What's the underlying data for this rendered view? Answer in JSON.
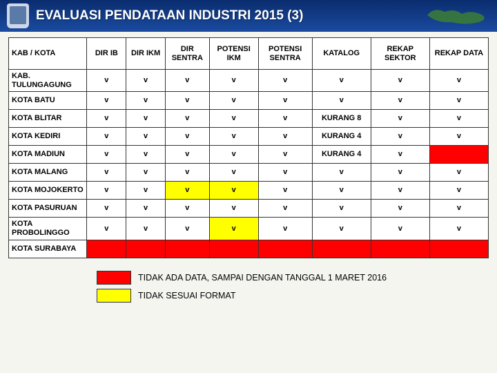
{
  "header": {
    "title": "EVALUASI PENDATAAN INDUSTRI 2015 (3)"
  },
  "table": {
    "columns": [
      "KAB / KOTA",
      "DIR IB",
      "DIR IKM",
      "DIR SENTRA",
      "POTENSI IKM",
      "POTENSI SENTRA",
      "KATALOG",
      "REKAP SEKTOR",
      "REKAP DATA"
    ],
    "col_widths": [
      "16%",
      "8%",
      "8%",
      "9%",
      "10%",
      "11%",
      "12%",
      "12%",
      "12%"
    ],
    "rows": [
      {
        "label": "KAB. TULUNGAGUNG",
        "cells": [
          {
            "v": "v"
          },
          {
            "v": "v"
          },
          {
            "v": "v"
          },
          {
            "v": "v"
          },
          {
            "v": "v"
          },
          {
            "v": "v"
          },
          {
            "v": "v"
          },
          {
            "v": "v"
          }
        ]
      },
      {
        "label": "KOTA BATU",
        "cells": [
          {
            "v": "v"
          },
          {
            "v": "v"
          },
          {
            "v": "v"
          },
          {
            "v": "v"
          },
          {
            "v": "v"
          },
          {
            "v": "v"
          },
          {
            "v": "v"
          },
          {
            "v": "v"
          }
        ]
      },
      {
        "label": "KOTA BLITAR",
        "cells": [
          {
            "v": "v"
          },
          {
            "v": "v"
          },
          {
            "v": "v"
          },
          {
            "v": "v"
          },
          {
            "v": "v"
          },
          {
            "v": "KURANG 8"
          },
          {
            "v": "v"
          },
          {
            "v": "v"
          }
        ]
      },
      {
        "label": "KOTA KEDIRI",
        "cells": [
          {
            "v": "v"
          },
          {
            "v": "v"
          },
          {
            "v": "v"
          },
          {
            "v": "v"
          },
          {
            "v": "v"
          },
          {
            "v": "KURANG 4"
          },
          {
            "v": "v"
          },
          {
            "v": "v"
          }
        ]
      },
      {
        "label": "KOTA MADIUN",
        "cells": [
          {
            "v": "v"
          },
          {
            "v": "v"
          },
          {
            "v": "v"
          },
          {
            "v": "v"
          },
          {
            "v": "v"
          },
          {
            "v": "KURANG 4"
          },
          {
            "v": "v"
          },
          {
            "v": "",
            "cls": "red"
          }
        ]
      },
      {
        "label": "KOTA  MALANG",
        "cells": [
          {
            "v": "v"
          },
          {
            "v": "v"
          },
          {
            "v": "v"
          },
          {
            "v": "v"
          },
          {
            "v": "v"
          },
          {
            "v": "v"
          },
          {
            "v": "v"
          },
          {
            "v": "v"
          }
        ]
      },
      {
        "label": "KOTA MOJOKERTO",
        "cells": [
          {
            "v": "v"
          },
          {
            "v": "v"
          },
          {
            "v": "v",
            "cls": "yellow"
          },
          {
            "v": "v",
            "cls": "yellow"
          },
          {
            "v": "v"
          },
          {
            "v": "v"
          },
          {
            "v": "v"
          },
          {
            "v": "v"
          }
        ]
      },
      {
        "label": "KOTA PASURUAN",
        "cells": [
          {
            "v": "v"
          },
          {
            "v": "v"
          },
          {
            "v": "v"
          },
          {
            "v": "v"
          },
          {
            "v": "v"
          },
          {
            "v": "v"
          },
          {
            "v": "v"
          },
          {
            "v": "v"
          }
        ]
      },
      {
        "label": "KOTA PROBOLINGGO",
        "cells": [
          {
            "v": "v"
          },
          {
            "v": "v"
          },
          {
            "v": "v"
          },
          {
            "v": "v",
            "cls": "yellow"
          },
          {
            "v": "v"
          },
          {
            "v": "v"
          },
          {
            "v": "v"
          },
          {
            "v": "v"
          }
        ]
      },
      {
        "label": "KOTA SURABAYA",
        "cells": [
          {
            "v": "",
            "cls": "red"
          },
          {
            "v": "",
            "cls": "red"
          },
          {
            "v": "",
            "cls": "red"
          },
          {
            "v": "",
            "cls": "red"
          },
          {
            "v": "",
            "cls": "red"
          },
          {
            "v": "",
            "cls": "red"
          },
          {
            "v": "",
            "cls": "red"
          },
          {
            "v": "",
            "cls": "red"
          }
        ]
      }
    ]
  },
  "legend": {
    "items": [
      {
        "color": "red",
        "text": "TIDAK  ADA DATA, SAMPAI DENGAN TANGGAL 1 MARET 2016"
      },
      {
        "color": "yellow",
        "text": "TIDAK SESUAI FORMAT"
      }
    ]
  },
  "colors": {
    "header_grad_top": "#0a2d6e",
    "header_grad_bottom": "#1a4aa0",
    "red": "#ff0000",
    "yellow": "#ffff00",
    "bg": "#f5f5f0",
    "border": "#333333"
  }
}
